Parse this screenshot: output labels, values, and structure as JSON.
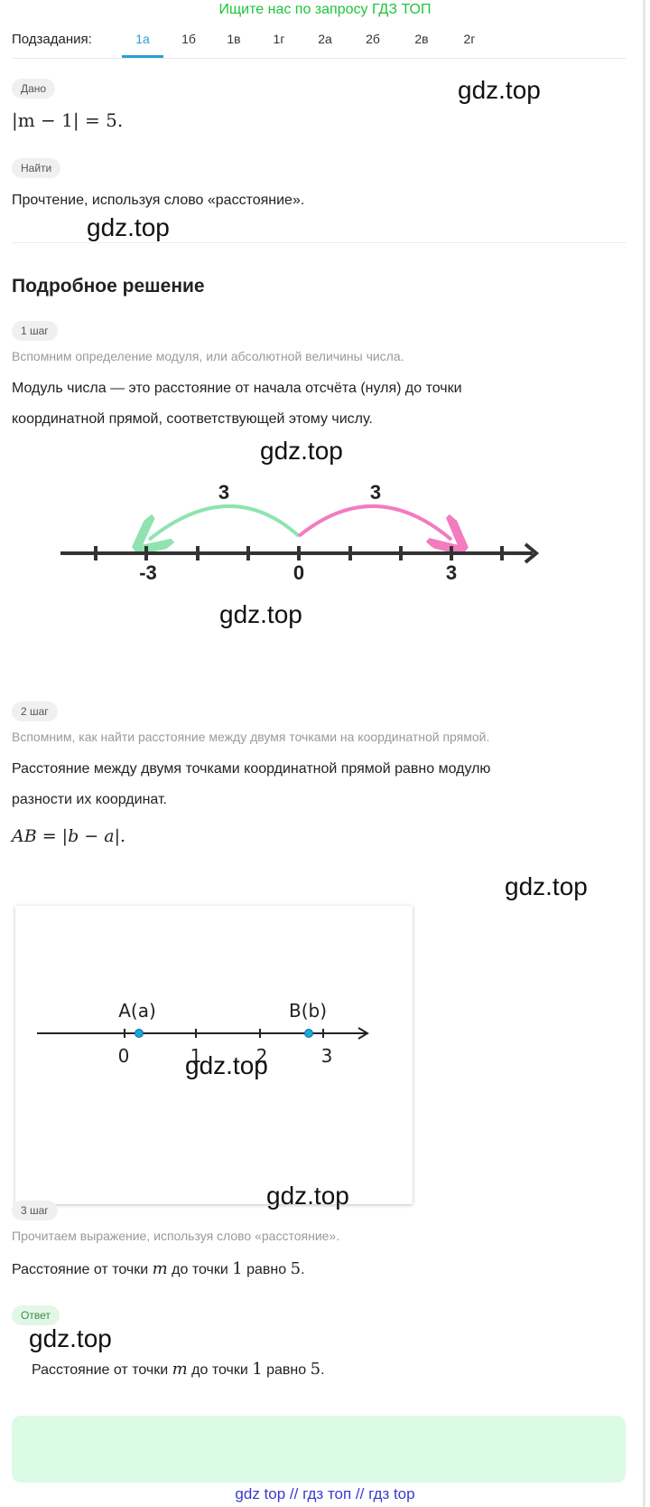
{
  "banner": "Ищите нас по запросу ГДЗ ТОП",
  "subtasks": {
    "label": "Подзадания:",
    "tabs": [
      "1а",
      "1б",
      "1в",
      "1г",
      "2а",
      "2б",
      "2в",
      "2г"
    ],
    "active": "1а"
  },
  "given": {
    "pill": "Дано",
    "formula_open": "|m − 1| = 5."
  },
  "find": {
    "pill": "Найти",
    "text": "Прочтение, используя слово «расстояние»."
  },
  "watermark": "gdz.top",
  "solution_heading": "Подробное решение",
  "step1": {
    "pill": "1 шаг",
    "hint": "Вспомним определение модуля, или абсолютной величины числа.",
    "text_line1": "Модуль числа — это расстояние от начала отсчёта (нуля) до точки",
    "text_line2": "координатной прямой, соответствующей этому числу.",
    "figure": {
      "left_arc_label": "3",
      "right_arc_label": "3",
      "tick_neg": "-3",
      "tick_zero": "0",
      "tick_pos": "3",
      "left_arc_color": "#8fe3b0",
      "right_arc_color": "#f37bc0"
    }
  },
  "step2": {
    "pill": "2 шаг",
    "hint": "Вспомним, как найти расстояние между двумя точками на координатной прямой.",
    "text_line1": "Расстояние между двумя точками координатной прямой равно модулю",
    "text_line2": "разности их координат.",
    "formula": "AB = |b − a|.",
    "figure": {
      "point_a_label": "A(a)",
      "point_b_label": "B(b)",
      "ticks": [
        "0",
        "1",
        "2",
        "3"
      ],
      "point_color": "#1aa8e0"
    }
  },
  "step3": {
    "pill": "3 шаг",
    "hint": "Прочитаем выражение, используя слово «расстояние».",
    "text_a": "Расстояние от точки ",
    "var_m": "m",
    "text_b": " до точки ",
    "num_1": "1",
    "text_c": " равно ",
    "num_5": "5",
    "text_d": "."
  },
  "answer": {
    "pill": "Ответ",
    "text_a": "Расстояние от точки ",
    "var_m": "m",
    "text_b": " до точки ",
    "num_1": "1",
    "text_c": " равно ",
    "num_5": "5",
    "text_d": "."
  },
  "footer": "gdz top  //  гдз топ  //  гдз top"
}
